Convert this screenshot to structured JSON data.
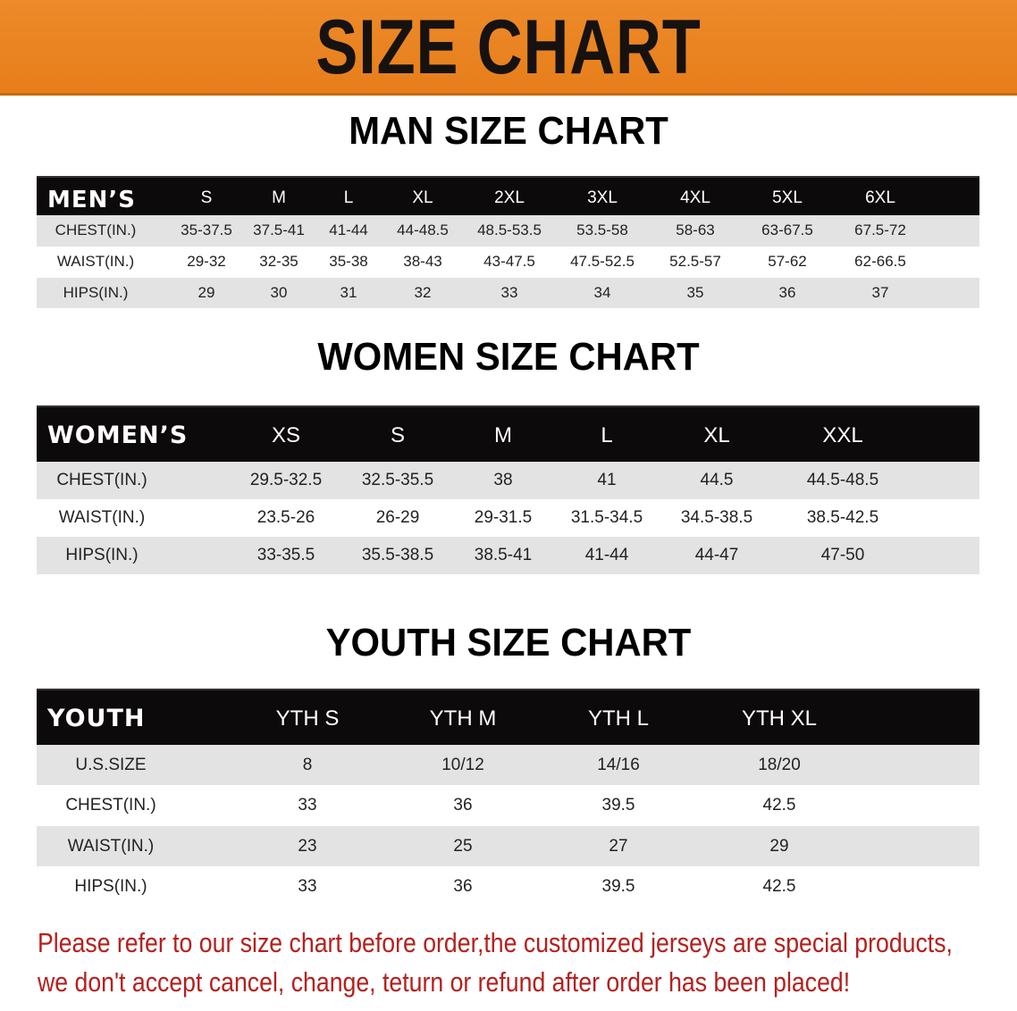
{
  "banner_title": "SIZE CHART",
  "colors": {
    "banner": "#e8821f",
    "header_row": "#0c0a0a",
    "stripe": "#e3e3e4",
    "note": "#b5201e"
  },
  "men": {
    "title": "MAN SIZE CHART",
    "header": "MEN’S",
    "sizes": [
      "S",
      "M",
      "L",
      "XL",
      "2XL",
      "3XL",
      "4XL",
      "5XL",
      "6XL"
    ],
    "rows": [
      {
        "label": "CHEST(IN.)",
        "values": [
          "35-37.5",
          "37.5-41",
          "41-44",
          "44-48.5",
          "48.5-53.5",
          "53.5-58",
          "58-63",
          "63-67.5",
          "67.5-72"
        ]
      },
      {
        "label": "WAIST(IN.)",
        "values": [
          "29-32",
          "32-35",
          "35-38",
          "38-43",
          "43-47.5",
          "47.5-52.5",
          "52.5-57",
          "57-62",
          "62-66.5"
        ]
      },
      {
        "label": "HIPS(IN.)",
        "values": [
          "29",
          "30",
          "31",
          "32",
          "33",
          "34",
          "35",
          "36",
          "37"
        ]
      }
    ]
  },
  "women": {
    "title": "WOMEN SIZE CHART",
    "header": "WOMEN’S",
    "sizes": [
      "XS",
      "S",
      "M",
      "L",
      "XL",
      "XXL"
    ],
    "rows": [
      {
        "label": "CHEST(IN.)",
        "values": [
          "29.5-32.5",
          "32.5-35.5",
          "38",
          "41",
          "44.5",
          "44.5-48.5"
        ]
      },
      {
        "label": "WAIST(IN.)",
        "values": [
          "23.5-26",
          "26-29",
          "29-31.5",
          "31.5-34.5",
          "34.5-38.5",
          "38.5-42.5"
        ]
      },
      {
        "label": "HIPS(IN.)",
        "values": [
          "33-35.5",
          "35.5-38.5",
          "38.5-41",
          "41-44",
          "44-47",
          "47-50"
        ]
      }
    ]
  },
  "youth": {
    "title": "YOUTH SIZE CHART",
    "header": "YOUTH",
    "sizes": [
      "YTH S",
      "YTH M",
      "YTH L",
      "YTH XL"
    ],
    "rows": [
      {
        "label": "U.S.SIZE",
        "values": [
          "8",
          "10/12",
          "14/16",
          "18/20"
        ]
      },
      {
        "label": "CHEST(IN.)",
        "values": [
          "33",
          "36",
          "39.5",
          "42.5"
        ]
      },
      {
        "label": "WAIST(IN.)",
        "values": [
          "23",
          "25",
          "27",
          "29"
        ]
      },
      {
        "label": "HIPS(IN.)",
        "values": [
          "33",
          "36",
          "39.5",
          "42.5"
        ]
      }
    ]
  },
  "notice": {
    "line1": "Please refer to our size chart before order,the customized jerseys are special products,",
    "line2": "we don't accept cancel, change, teturn or refund after order has been placed!"
  }
}
